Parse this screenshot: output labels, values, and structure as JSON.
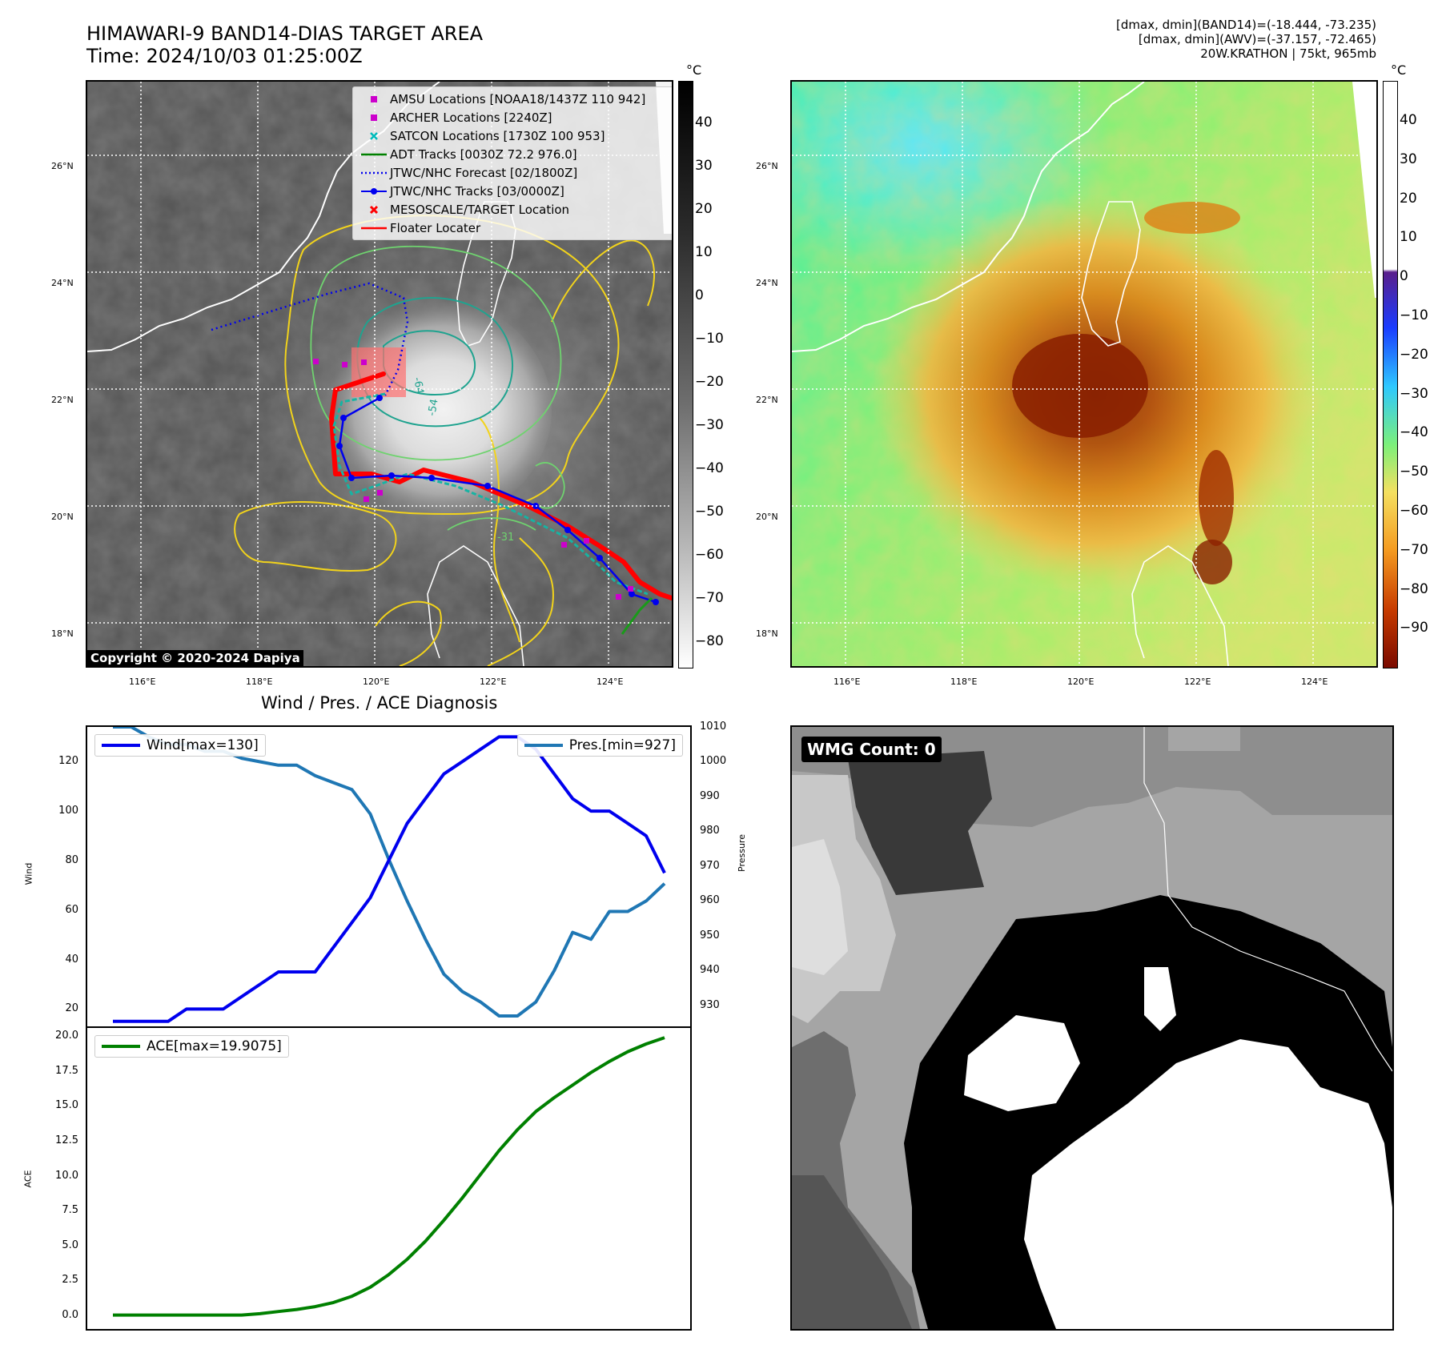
{
  "header": {
    "title_line1": "HIMAWARI-9 BAND14-DIAS TARGET AREA",
    "title_line2": "Time: 2024/10/03 01:25:00Z",
    "right_line1": "[dmax, dmin](BAND14)=(-18.444, -73.235)",
    "right_line2": "[dmax, dmin](AWV)=(-37.157, -72.465)",
    "right_line3": "20W.KRATHON | 75kt, 965mb"
  },
  "map": {
    "lat_labels": [
      "26°N",
      "24°N",
      "22°N",
      "20°N",
      "18°N"
    ],
    "lon_labels": [
      "116°E",
      "118°E",
      "120°E",
      "122°E",
      "124°E"
    ],
    "copyright": "Copyright © 2020-2024 Dapiya",
    "contour_labels": [
      "-64",
      "-54",
      "-31"
    ]
  },
  "legend": [
    {
      "label": "AMSU Locations [NOAA18/1437Z 110 942]",
      "symbol": "magenta-square"
    },
    {
      "label": "ARCHER Locations [2240Z]",
      "symbol": "magenta-square"
    },
    {
      "label": "SATCON Locations [1730Z 100 953]",
      "symbol": "cyan-x"
    },
    {
      "label": "ADT Tracks [0030Z 72.2 976.0]",
      "symbol": "green-line"
    },
    {
      "label": "JTWC/NHC Forecast [02/1800Z]",
      "symbol": "blue-dotted-line"
    },
    {
      "label": "JTWC/NHC Tracks [03/0000Z]",
      "symbol": "blue-line-dot"
    },
    {
      "label": "MESOSCALE/TARGET Location",
      "symbol": "red-x"
    },
    {
      "label": "Floater Locater",
      "symbol": "red-line"
    }
  ],
  "colorbar_left": {
    "unit": "°C",
    "ticks": [
      "40",
      "30",
      "20",
      "10",
      "0",
      "−10",
      "−20",
      "−30",
      "−40",
      "−50",
      "−60",
      "−70",
      "−80"
    ]
  },
  "colorbar_right": {
    "unit": "°C",
    "ticks": [
      "40",
      "30",
      "20",
      "10",
      "0",
      "−10",
      "−20",
      "−30",
      "−40",
      "−50",
      "−60",
      "−70",
      "−80",
      "−90"
    ]
  },
  "diagnosis_title": "Wind / Pres. / ACE Diagnosis",
  "wmg_label": "WMG Count: 0",
  "colors": {
    "wind": "#0000ee",
    "pressure": "#1f77b4",
    "ace": "#008000"
  },
  "chart_data": [
    {
      "type": "line",
      "title": "Wind / Pres. / ACE Diagnosis",
      "ylabel": "Wind",
      "ylabel_right": "Pressure",
      "ylim": [
        13,
        134
      ],
      "ylim_right": [
        924,
        1010
      ],
      "yticks": [
        "120",
        "100",
        "80",
        "60",
        "40",
        "20"
      ],
      "yticks_right": [
        "1010",
        "1000",
        "990",
        "980",
        "970",
        "960",
        "950",
        "940",
        "930"
      ],
      "series": [
        {
          "name": "Wind[max=130]",
          "axis": "left",
          "values": [
            15,
            15,
            15,
            15,
            20,
            20,
            20,
            25,
            30,
            35,
            35,
            35,
            45,
            55,
            65,
            80,
            95,
            105,
            115,
            120,
            125,
            130,
            130,
            125,
            115,
            105,
            100,
            100,
            95,
            90,
            75
          ]
        },
        {
          "name": "Pres.[min=927]",
          "axis": "right",
          "values": [
            1010,
            1010,
            1007,
            1005,
            1005,
            1003,
            1003,
            1001,
            1000,
            999,
            999,
            996,
            994,
            992,
            985,
            972,
            960,
            949,
            939,
            934,
            931,
            927,
            927,
            931,
            940,
            951,
            949,
            957,
            957,
            960,
            965
          ]
        }
      ]
    },
    {
      "type": "line",
      "ylabel": "ACE",
      "ylim": [
        -1,
        20.6
      ],
      "yticks": [
        "20.0",
        "17.5",
        "15.0",
        "12.5",
        "10.0",
        "7.5",
        "5.0",
        "2.5",
        "0.0"
      ],
      "series": [
        {
          "name": "ACE[max=19.9075]",
          "values": [
            0,
            0,
            0,
            0,
            0,
            0,
            0,
            0,
            0.1,
            0.25,
            0.4,
            0.6,
            0.9,
            1.35,
            2.0,
            2.9,
            4.0,
            5.3,
            6.8,
            8.4,
            10.1,
            11.8,
            13.3,
            14.6,
            15.6,
            16.5,
            17.4,
            18.2,
            18.9,
            19.45,
            19.9075
          ]
        }
      ]
    }
  ]
}
